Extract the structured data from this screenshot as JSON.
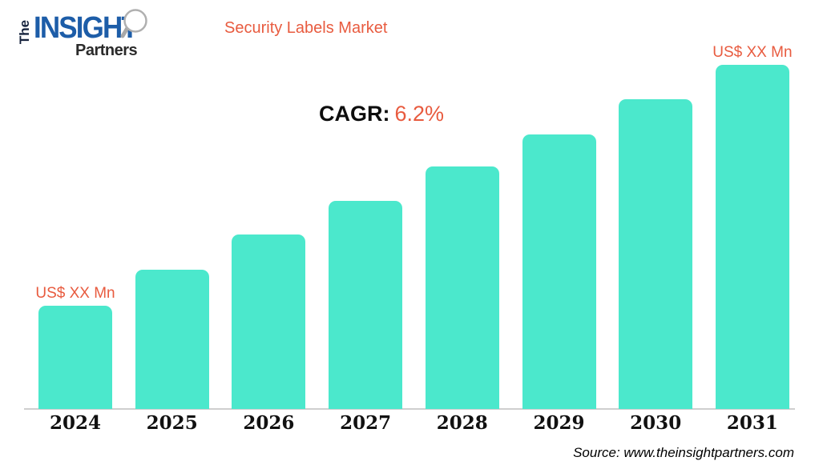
{
  "logo": {
    "the": "The",
    "insight": "INSIGHT",
    "partners": "Partners",
    "blue": "#1d5da8",
    "dark": "#16233d",
    "magnifier_gray": "#aaaaaa"
  },
  "header": {
    "title": "Security Labels Market",
    "title_color": "#e85b3f"
  },
  "cagr": {
    "label": "CAGR:",
    "value": "6.2%"
  },
  "source": {
    "text": "Source: www.theinsightpartners.com"
  },
  "colors": {
    "bar": "#4be8cc",
    "accent_orange": "#e85b3f",
    "axis": "#cfcfcf",
    "text": "#111111"
  },
  "chart_data": {
    "type": "bar",
    "title": "Security Labels Market",
    "categories": [
      "2024",
      "2025",
      "2026",
      "2027",
      "2028",
      "2029",
      "2030",
      "2031"
    ],
    "relative_heights_pct": [
      30,
      40.5,
      50.7,
      60.5,
      70.5,
      79.8,
      90,
      100
    ],
    "value_labels": {
      "2024": "US$ XX Mn",
      "2031": "US$ XX Mn"
    },
    "cagr": "6.2%",
    "xlabel": "",
    "ylabel": "",
    "y_axis_visible": false,
    "gridlines": false,
    "legend": "none",
    "bar_color": "#4be8cc"
  }
}
